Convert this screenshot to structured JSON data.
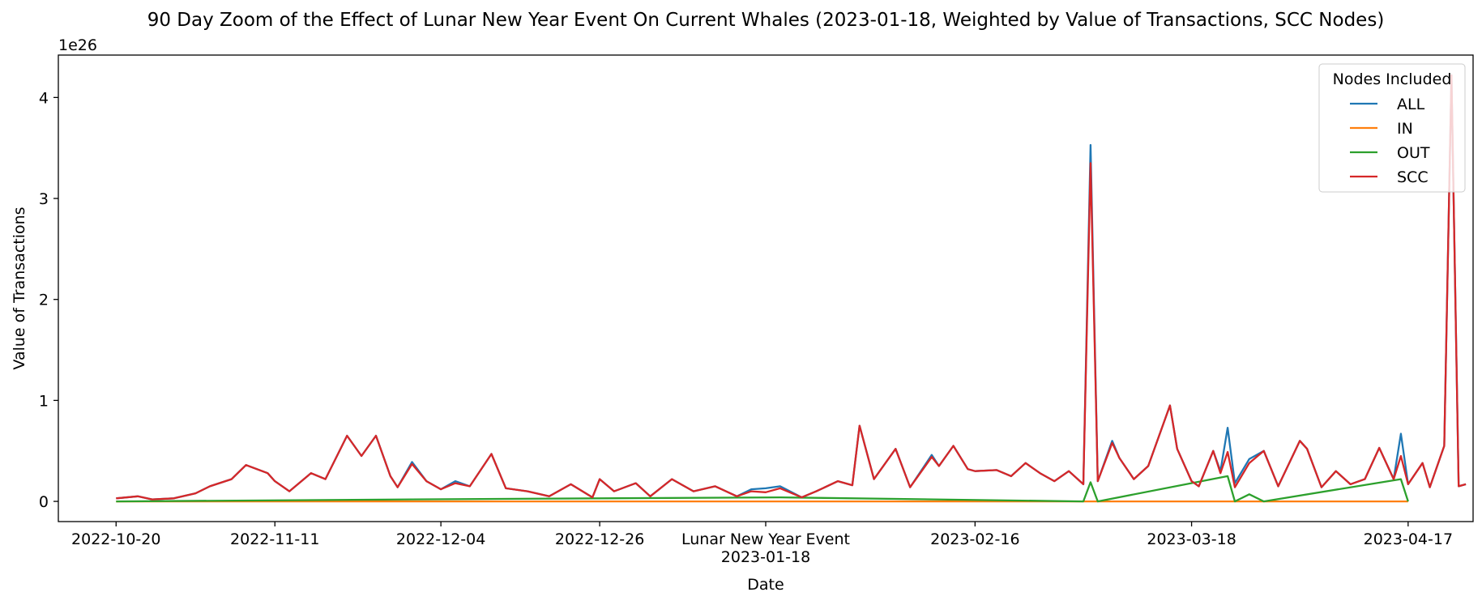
{
  "chart_data": {
    "type": "line",
    "title": "90 Day Zoom of the Effect of Lunar New Year Event On Current Whales (2023-01-18, Weighted by Value of Transactions, SCC Nodes)",
    "xlabel": "Date",
    "ylabel": "Value of Transactions",
    "y_offset_text": "1e26",
    "y_scale": 1e+26,
    "ylim": [
      -0.2,
      4.42
    ],
    "xlim": [
      "2022-10-12",
      "2023-04-26"
    ],
    "y_ticks": [
      0,
      1,
      2,
      3,
      4
    ],
    "x_ticks": [
      {
        "date": "2022-10-20",
        "label": "2022-10-20"
      },
      {
        "date": "2022-11-11",
        "label": "2022-11-11"
      },
      {
        "date": "2022-12-04",
        "label": "2022-12-04"
      },
      {
        "date": "2022-12-26",
        "label": "2022-12-26"
      },
      {
        "date": "2023-01-18",
        "label": "Lunar New Year Event",
        "sublabel": "2023-01-18"
      },
      {
        "date": "2023-02-16",
        "label": "2023-02-16"
      },
      {
        "date": "2023-03-18",
        "label": "2023-03-18"
      },
      {
        "date": "2023-04-17",
        "label": "2023-04-17"
      }
    ],
    "grid": false,
    "legend": {
      "title": "Nodes Included",
      "placement": "top-right"
    },
    "series": [
      {
        "name": "ALL",
        "color": "#1f77b4",
        "points": [
          [
            "2022-10-20",
            0.03
          ],
          [
            "2022-10-23",
            0.05
          ],
          [
            "2022-10-25",
            0.02
          ],
          [
            "2022-10-28",
            0.03
          ],
          [
            "2022-10-31",
            0.08
          ],
          [
            "2022-11-02",
            0.15
          ],
          [
            "2022-11-05",
            0.22
          ],
          [
            "2022-11-07",
            0.36
          ],
          [
            "2022-11-10",
            0.28
          ],
          [
            "2022-11-11",
            0.2
          ],
          [
            "2022-11-13",
            0.1
          ],
          [
            "2022-11-16",
            0.28
          ],
          [
            "2022-11-18",
            0.22
          ],
          [
            "2022-11-21",
            0.65
          ],
          [
            "2022-11-23",
            0.45
          ],
          [
            "2022-11-25",
            0.65
          ],
          [
            "2022-11-27",
            0.25
          ],
          [
            "2022-11-28",
            0.14
          ],
          [
            "2022-11-30",
            0.39
          ],
          [
            "2022-12-02",
            0.2
          ],
          [
            "2022-12-04",
            0.12
          ],
          [
            "2022-12-06",
            0.2
          ],
          [
            "2022-12-08",
            0.15
          ],
          [
            "2022-12-11",
            0.47
          ],
          [
            "2022-12-13",
            0.13
          ],
          [
            "2022-12-16",
            0.1
          ],
          [
            "2022-12-19",
            0.05
          ],
          [
            "2022-12-22",
            0.17
          ],
          [
            "2022-12-25",
            0.04
          ],
          [
            "2022-12-26",
            0.22
          ],
          [
            "2022-12-28",
            0.1
          ],
          [
            "2022-12-31",
            0.18
          ],
          [
            "2023-01-02",
            0.05
          ],
          [
            "2023-01-05",
            0.22
          ],
          [
            "2023-01-08",
            0.1
          ],
          [
            "2023-01-11",
            0.15
          ],
          [
            "2023-01-14",
            0.05
          ],
          [
            "2023-01-16",
            0.12
          ],
          [
            "2023-01-18",
            0.13
          ],
          [
            "2023-01-20",
            0.15
          ],
          [
            "2023-01-23",
            0.04
          ],
          [
            "2023-01-25",
            0.1
          ],
          [
            "2023-01-28",
            0.2
          ],
          [
            "2023-01-30",
            0.16
          ],
          [
            "2023-01-31",
            0.75
          ],
          [
            "2023-02-02",
            0.22
          ],
          [
            "2023-02-05",
            0.52
          ],
          [
            "2023-02-07",
            0.14
          ],
          [
            "2023-02-10",
            0.46
          ],
          [
            "2023-02-11",
            0.35
          ],
          [
            "2023-02-13",
            0.55
          ],
          [
            "2023-02-15",
            0.32
          ],
          [
            "2023-02-16",
            0.3
          ],
          [
            "2023-02-19",
            0.31
          ],
          [
            "2023-02-21",
            0.25
          ],
          [
            "2023-02-23",
            0.38
          ],
          [
            "2023-02-25",
            0.28
          ],
          [
            "2023-02-27",
            0.2
          ],
          [
            "2023-03-01",
            0.3
          ],
          [
            "2023-03-03",
            0.17
          ],
          [
            "2023-03-04",
            3.53
          ],
          [
            "2023-03-05",
            0.2
          ],
          [
            "2023-03-07",
            0.6
          ],
          [
            "2023-03-08",
            0.43
          ],
          [
            "2023-03-10",
            0.22
          ],
          [
            "2023-03-12",
            0.35
          ],
          [
            "2023-03-15",
            0.95
          ],
          [
            "2023-03-16",
            0.52
          ],
          [
            "2023-03-18",
            0.2
          ],
          [
            "2023-03-19",
            0.15
          ],
          [
            "2023-03-21",
            0.5
          ],
          [
            "2023-03-22",
            0.3
          ],
          [
            "2023-03-23",
            0.73
          ],
          [
            "2023-03-24",
            0.18
          ],
          [
            "2023-03-26",
            0.42
          ],
          [
            "2023-03-28",
            0.5
          ],
          [
            "2023-03-30",
            0.15
          ],
          [
            "2023-04-02",
            0.6
          ],
          [
            "2023-04-03",
            0.52
          ],
          [
            "2023-04-05",
            0.14
          ],
          [
            "2023-04-07",
            0.3
          ],
          [
            "2023-04-09",
            0.17
          ],
          [
            "2023-04-11",
            0.22
          ],
          [
            "2023-04-13",
            0.53
          ],
          [
            "2023-04-15",
            0.22
          ],
          [
            "2023-04-16",
            0.67
          ],
          [
            "2023-04-17",
            0.17
          ],
          [
            "2023-04-19",
            0.38
          ],
          [
            "2023-04-20",
            0.14
          ],
          [
            "2023-04-22",
            0.55
          ],
          [
            "2023-04-23",
            4.22
          ],
          [
            "2023-04-24",
            0.15
          ],
          [
            "2023-04-25",
            0.17
          ]
        ]
      },
      {
        "name": "IN",
        "color": "#ff7f0e",
        "points": [
          [
            "2022-10-20",
            0.0
          ],
          [
            "2023-04-17",
            0.0
          ]
        ]
      },
      {
        "name": "OUT",
        "color": "#2ca02c",
        "points": [
          [
            "2022-10-20",
            0.0
          ],
          [
            "2022-11-30",
            0.02
          ],
          [
            "2023-01-20",
            0.04
          ],
          [
            "2023-03-03",
            0.0
          ],
          [
            "2023-03-04",
            0.19
          ],
          [
            "2023-03-05",
            0.0
          ],
          [
            "2023-03-23",
            0.25
          ],
          [
            "2023-03-24",
            0.0
          ],
          [
            "2023-03-26",
            0.07
          ],
          [
            "2023-03-28",
            0.0
          ],
          [
            "2023-04-16",
            0.22
          ],
          [
            "2023-04-17",
            0.0
          ]
        ]
      },
      {
        "name": "SCC",
        "color": "#d62728",
        "points": [
          [
            "2022-10-20",
            0.03
          ],
          [
            "2022-10-23",
            0.05
          ],
          [
            "2022-10-25",
            0.02
          ],
          [
            "2022-10-28",
            0.03
          ],
          [
            "2022-10-31",
            0.08
          ],
          [
            "2022-11-02",
            0.15
          ],
          [
            "2022-11-05",
            0.22
          ],
          [
            "2022-11-07",
            0.36
          ],
          [
            "2022-11-10",
            0.28
          ],
          [
            "2022-11-11",
            0.2
          ],
          [
            "2022-11-13",
            0.1
          ],
          [
            "2022-11-16",
            0.28
          ],
          [
            "2022-11-18",
            0.22
          ],
          [
            "2022-11-21",
            0.65
          ],
          [
            "2022-11-23",
            0.45
          ],
          [
            "2022-11-25",
            0.65
          ],
          [
            "2022-11-27",
            0.25
          ],
          [
            "2022-11-28",
            0.14
          ],
          [
            "2022-11-30",
            0.37
          ],
          [
            "2022-12-02",
            0.2
          ],
          [
            "2022-12-04",
            0.12
          ],
          [
            "2022-12-06",
            0.18
          ],
          [
            "2022-12-08",
            0.15
          ],
          [
            "2022-12-11",
            0.47
          ],
          [
            "2022-12-13",
            0.13
          ],
          [
            "2022-12-16",
            0.1
          ],
          [
            "2022-12-19",
            0.05
          ],
          [
            "2022-12-22",
            0.17
          ],
          [
            "2022-12-25",
            0.04
          ],
          [
            "2022-12-26",
            0.22
          ],
          [
            "2022-12-28",
            0.1
          ],
          [
            "2022-12-31",
            0.18
          ],
          [
            "2023-01-02",
            0.05
          ],
          [
            "2023-01-05",
            0.22
          ],
          [
            "2023-01-08",
            0.1
          ],
          [
            "2023-01-11",
            0.15
          ],
          [
            "2023-01-14",
            0.05
          ],
          [
            "2023-01-16",
            0.1
          ],
          [
            "2023-01-18",
            0.09
          ],
          [
            "2023-01-20",
            0.13
          ],
          [
            "2023-01-23",
            0.04
          ],
          [
            "2023-01-25",
            0.1
          ],
          [
            "2023-01-28",
            0.2
          ],
          [
            "2023-01-30",
            0.16
          ],
          [
            "2023-01-31",
            0.75
          ],
          [
            "2023-02-02",
            0.22
          ],
          [
            "2023-02-05",
            0.52
          ],
          [
            "2023-02-07",
            0.14
          ],
          [
            "2023-02-10",
            0.44
          ],
          [
            "2023-02-11",
            0.35
          ],
          [
            "2023-02-13",
            0.55
          ],
          [
            "2023-02-15",
            0.32
          ],
          [
            "2023-02-16",
            0.3
          ],
          [
            "2023-02-19",
            0.31
          ],
          [
            "2023-02-21",
            0.25
          ],
          [
            "2023-02-23",
            0.38
          ],
          [
            "2023-02-25",
            0.28
          ],
          [
            "2023-02-27",
            0.2
          ],
          [
            "2023-03-01",
            0.3
          ],
          [
            "2023-03-03",
            0.17
          ],
          [
            "2023-03-04",
            3.35
          ],
          [
            "2023-03-05",
            0.2
          ],
          [
            "2023-03-07",
            0.58
          ],
          [
            "2023-03-08",
            0.43
          ],
          [
            "2023-03-10",
            0.22
          ],
          [
            "2023-03-12",
            0.35
          ],
          [
            "2023-03-15",
            0.95
          ],
          [
            "2023-03-16",
            0.52
          ],
          [
            "2023-03-18",
            0.2
          ],
          [
            "2023-03-19",
            0.15
          ],
          [
            "2023-03-21",
            0.5
          ],
          [
            "2023-03-22",
            0.28
          ],
          [
            "2023-03-23",
            0.49
          ],
          [
            "2023-03-24",
            0.14
          ],
          [
            "2023-03-26",
            0.38
          ],
          [
            "2023-03-28",
            0.5
          ],
          [
            "2023-03-30",
            0.15
          ],
          [
            "2023-04-02",
            0.6
          ],
          [
            "2023-04-03",
            0.52
          ],
          [
            "2023-04-05",
            0.14
          ],
          [
            "2023-04-07",
            0.3
          ],
          [
            "2023-04-09",
            0.17
          ],
          [
            "2023-04-11",
            0.22
          ],
          [
            "2023-04-13",
            0.53
          ],
          [
            "2023-04-15",
            0.22
          ],
          [
            "2023-04-16",
            0.45
          ],
          [
            "2023-04-17",
            0.17
          ],
          [
            "2023-04-19",
            0.38
          ],
          [
            "2023-04-20",
            0.14
          ],
          [
            "2023-04-22",
            0.55
          ],
          [
            "2023-04-23",
            4.22
          ],
          [
            "2023-04-24",
            0.15
          ],
          [
            "2023-04-25",
            0.17
          ]
        ]
      }
    ]
  }
}
